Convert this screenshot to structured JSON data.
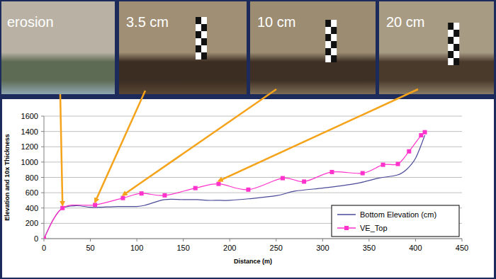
{
  "chart_data": {
    "type": "line",
    "x_label": "Distance (m)",
    "y_label": "Elevation and 10x Thickness",
    "xlim": [
      0,
      450
    ],
    "ylim": [
      0,
      1600
    ],
    "xticks": [
      0,
      50,
      100,
      150,
      200,
      250,
      300,
      350,
      400,
      450
    ],
    "yticks": [
      0,
      200,
      400,
      600,
      800,
      1000,
      1200,
      1400,
      1600
    ],
    "grid": true,
    "legend": "bottom-right",
    "series": [
      {
        "name": "Bottom Elevation (cm)",
        "color": "#4a4a9a",
        "marker": "none",
        "line_style": "solid",
        "x": [
          0,
          10,
          20,
          35,
          50,
          60,
          80,
          100,
          110,
          130,
          150,
          165,
          175,
          190,
          200,
          220,
          250,
          270,
          300,
          320,
          340,
          360,
          380,
          390,
          400,
          410
        ],
        "values": [
          0,
          250,
          400,
          430,
          410,
          410,
          420,
          420,
          440,
          510,
          510,
          510,
          500,
          500,
          500,
          520,
          560,
          620,
          660,
          690,
          730,
          790,
          830,
          900,
          1050,
          1350
        ]
      },
      {
        "name": "VE_Top",
        "color": "#ff33cc",
        "marker": "square",
        "line_style": "solid",
        "x": [
          0,
          20,
          55,
          85,
          105,
          130,
          163,
          188,
          220,
          257,
          280,
          310,
          343,
          365,
          381,
          393,
          406,
          410
        ],
        "values": [
          0,
          400,
          440,
          530,
          590,
          565,
          660,
          715,
          640,
          790,
          745,
          870,
          855,
          965,
          975,
          1140,
          1350,
          1390
        ]
      }
    ],
    "annotations": [
      {
        "text": "erosion",
        "x": 20,
        "y": 400
      },
      {
        "text": "3.5 cm",
        "x": 55,
        "y": 440
      },
      {
        "text": "10 cm",
        "x": 85,
        "y": 530
      },
      {
        "text": "20 cm",
        "x": 188,
        "y": 715
      }
    ]
  }
}
